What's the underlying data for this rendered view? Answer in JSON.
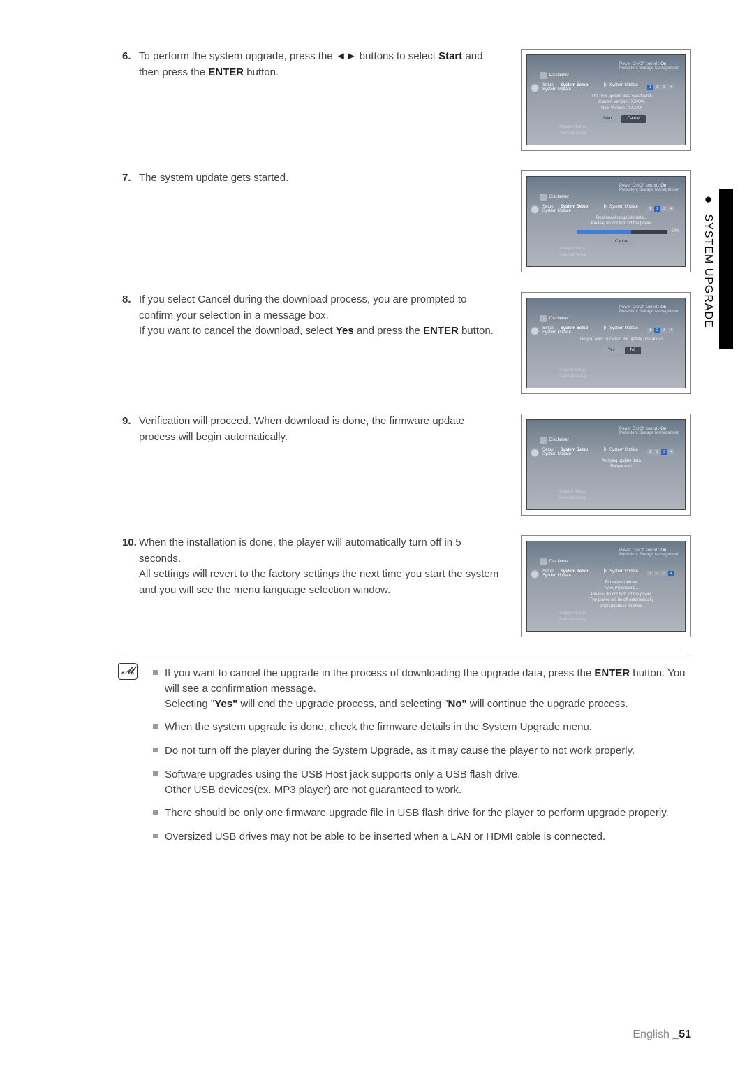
{
  "steps": [
    {
      "num": "6.",
      "text_parts": [
        "To perform the system upgrade, press the ",
        "◄►",
        " buttons to select ",
        "Start",
        " and then press the ",
        "ENTER",
        " button."
      ],
      "shot": {
        "header_left": "Power On/Off sound",
        "header_right": ": On",
        "header2": "Persistent Storage Management",
        "disclaimer": "Disclaimer",
        "setup": "Setup",
        "system_setup": "System Setup",
        "system_update": "System Update",
        "sub": "System Update",
        "stage": 1,
        "lines": [
          "The new update data was found.",
          "Current Version : XXXXX",
          "New Version : XXXXX"
        ],
        "buttons": [
          {
            "label": "Start",
            "light": true
          },
          {
            "label": "Cancel",
            "light": false
          }
        ],
        "menu": [
          "Network Setup",
          "Parental Setup"
        ]
      }
    },
    {
      "num": "7.",
      "text_parts": [
        "The system update gets started."
      ],
      "shot": {
        "header_left": "Power On/Off sound",
        "header_right": ": On",
        "header2": "Persistent Storage Management",
        "disclaimer": "Disclaimer",
        "setup": "Setup",
        "system_setup": "System Setup",
        "system_update": "System Update",
        "sub": "System Update",
        "stage": 2,
        "lines": [
          "Downloading update data...",
          "Please, do not turn off the power."
        ],
        "progress": 60,
        "pct": "60%",
        "buttons": [
          {
            "label": "Cancel",
            "light": true
          }
        ],
        "menu": [
          "Network Setup",
          "Parental Setup"
        ]
      }
    },
    {
      "num": "8.",
      "text_parts": [
        "If you select Cancel during the download process, you are prompted to confirm your selection in a message box.\nIf you want to cancel the download, select ",
        "Yes",
        " and press the ",
        "ENTER",
        " button."
      ],
      "shot": {
        "header_left": "Power On/Off sound",
        "header_right": ": On",
        "header2": "Persistent Storage Management",
        "disclaimer": "Disclaimer",
        "setup": "Setup",
        "system_setup": "System Setup",
        "system_update": "System Update",
        "sub": "System Update",
        "stage": 2,
        "lines": [
          "Do you want to cancel the update operation?"
        ],
        "buttons": [
          {
            "label": "Yes",
            "light": true
          },
          {
            "label": "No",
            "light": false
          }
        ],
        "menu": [
          "Network Setup",
          "Parental Setup"
        ]
      }
    },
    {
      "num": "9.",
      "text_parts": [
        "Verification will proceed. When download is done, the firmware update process will begin automatically."
      ],
      "shot": {
        "header_left": "Power On/Off sound",
        "header_right": ": On",
        "header2": "Persistent Storage Management",
        "disclaimer": "Disclaimer",
        "setup": "Setup",
        "system_setup": "System Setup",
        "system_update": "System Update",
        "sub": "System Update",
        "stage": 3,
        "lines": [
          "Verifying update data.",
          "Please wait."
        ],
        "menu": [
          "Network Setup",
          "Parental Setup"
        ]
      }
    },
    {
      "num": "10.",
      "text_parts": [
        "When the installation is done, the player will automatically turn off in 5 seconds.\nAll settings  will revert to the factory settings the next time you start the system and you will see the menu language selection window."
      ],
      "shot": {
        "header_left": "Power On/Off sound",
        "header_right": ": On",
        "header2": "Persistent Storage Management",
        "disclaimer": "Disclaimer",
        "setup": "Setup",
        "system_setup": "System Setup",
        "system_update": "System Update",
        "sub": "System Update",
        "stage": 4,
        "lines": [
          "Firmware Update.",
          "Now, Processing...",
          "Please, do not turn off the power.",
          "The power will be off automatically",
          "after update is finished."
        ],
        "menu": [
          "Network Setup",
          "Parental Setup"
        ]
      }
    }
  ],
  "tab": {
    "label": "SYSTEM UPGRADE"
  },
  "notes": [
    {
      "parts": [
        "If you want to cancel the upgrade in the process of downloading the upgrade data, press the ",
        "ENTER",
        " button. You will see a confirmation message.\nSelecting \"",
        "Yes\"",
        " will end the upgrade process, and selecting \"",
        "No\"",
        " will continue the upgrade process."
      ]
    },
    {
      "parts": [
        "When the system upgrade is done, check the firmware details in the System Upgrade menu."
      ]
    },
    {
      "parts": [
        "Do not turn off the player during the System Upgrade, as it may cause the player to not work properly."
      ]
    },
    {
      "parts": [
        "Software upgrades using the USB Host jack supports only a USB flash drive.\nOther USB devices(ex. MP3 player) are not guaranteed to work."
      ]
    },
    {
      "parts": [
        "There should be only one firmware upgrade file in USB flash drive for the player to perform upgrade properly."
      ]
    },
    {
      "parts": [
        "Oversized USB drives may not be able to be inserted when a LAN or HDMI cable is connected."
      ]
    }
  ],
  "footer": {
    "lang": "English ",
    "page": "_51"
  },
  "colors": {
    "tab": "#000000",
    "bullet": "#999999"
  }
}
